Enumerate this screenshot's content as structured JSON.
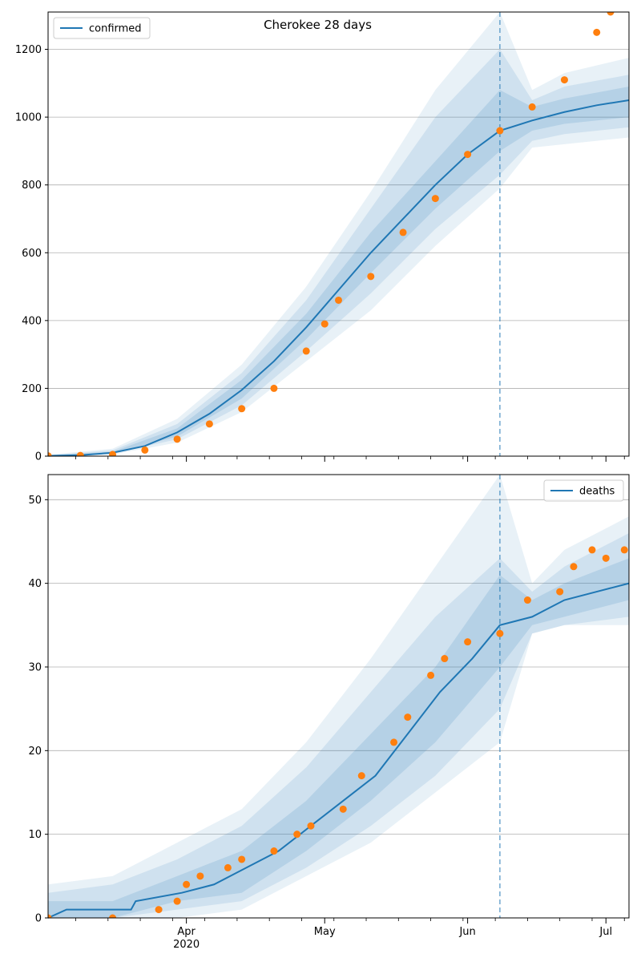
{
  "chart_data": [
    {
      "type": "line",
      "title": "Cherokee 28 days",
      "legend": {
        "placement": "top-left",
        "entries": [
          "confirmed"
        ]
      },
      "grid": {
        "y": true,
        "x": false
      },
      "ylim": [
        0,
        1310
      ],
      "yticks": [
        0,
        200,
        400,
        600,
        800,
        1000,
        1200
      ],
      "forecast_start": "2020-06-08",
      "model_line": {
        "name": "confirmed",
        "color": "#1f77b4",
        "points": [
          [
            "2020-03-02",
            1
          ],
          [
            "2020-03-09",
            3
          ],
          [
            "2020-03-16",
            10
          ],
          [
            "2020-03-23",
            30
          ],
          [
            "2020-03-30",
            70
          ],
          [
            "2020-04-06",
            125
          ],
          [
            "2020-04-13",
            195
          ],
          [
            "2020-04-20",
            280
          ],
          [
            "2020-04-27",
            380
          ],
          [
            "2020-05-04",
            490
          ],
          [
            "2020-05-11",
            600
          ],
          [
            "2020-05-18",
            700
          ],
          [
            "2020-05-25",
            800
          ],
          [
            "2020-06-01",
            890
          ],
          [
            "2020-06-08",
            960
          ],
          [
            "2020-06-15",
            990
          ],
          [
            "2020-06-22",
            1015
          ],
          [
            "2020-06-29",
            1035
          ],
          [
            "2020-07-06",
            1050
          ]
        ]
      },
      "uncertainty_bands": [
        {
          "opacity": 0.1,
          "points": [
            [
              "2020-03-02",
              0,
              4
            ],
            [
              "2020-03-16",
              5,
              22
            ],
            [
              "2020-03-30",
              40,
              110
            ],
            [
              "2020-04-13",
              130,
              270
            ],
            [
              "2020-04-27",
              280,
              500
            ],
            [
              "2020-05-11",
              430,
              780
            ],
            [
              "2020-05-25",
              620,
              1080
            ],
            [
              "2020-06-08",
              790,
              1310
            ],
            [
              "2020-06-15",
              910,
              1080
            ],
            [
              "2020-06-22",
              920,
              1130
            ],
            [
              "2020-07-06",
              940,
              1175
            ]
          ]
        },
        {
          "opacity": 0.12,
          "points": [
            [
              "2020-03-02",
              0,
              3
            ],
            [
              "2020-03-16",
              7,
              17
            ],
            [
              "2020-03-30",
              50,
              95
            ],
            [
              "2020-04-13",
              150,
              245
            ],
            [
              "2020-04-27",
              310,
              460
            ],
            [
              "2020-05-11",
              480,
              730
            ],
            [
              "2020-05-25",
              670,
              1000
            ],
            [
              "2020-06-08",
              830,
              1200
            ],
            [
              "2020-06-15",
              930,
              1050
            ],
            [
              "2020-06-22",
              950,
              1090
            ],
            [
              "2020-07-06",
              970,
              1125
            ]
          ]
        },
        {
          "opacity": 0.15,
          "points": [
            [
              "2020-03-02",
              0,
              2
            ],
            [
              "2020-03-16",
              8,
              13
            ],
            [
              "2020-03-30",
              58,
              82
            ],
            [
              "2020-04-13",
              170,
              225
            ],
            [
              "2020-04-27",
              345,
              420
            ],
            [
              "2020-05-11",
              540,
              660
            ],
            [
              "2020-05-25",
              730,
              870
            ],
            [
              "2020-06-08",
              900,
              1080
            ],
            [
              "2020-06-15",
              960,
              1030
            ],
            [
              "2020-06-22",
              980,
              1055
            ],
            [
              "2020-07-06",
              1000,
              1090
            ]
          ]
        }
      ],
      "observed": {
        "color": "#ff7f0e",
        "points": [
          [
            "2020-03-02",
            1
          ],
          [
            "2020-03-09",
            2
          ],
          [
            "2020-03-16",
            5
          ],
          [
            "2020-03-23",
            18
          ],
          [
            "2020-03-30",
            50
          ],
          [
            "2020-04-06",
            95
          ],
          [
            "2020-04-13",
            140
          ],
          [
            "2020-04-20",
            200
          ],
          [
            "2020-04-27",
            310
          ],
          [
            "2020-05-01",
            390
          ],
          [
            "2020-05-04",
            460
          ],
          [
            "2020-05-11",
            530
          ],
          [
            "2020-05-18",
            660
          ],
          [
            "2020-05-25",
            760
          ],
          [
            "2020-06-01",
            890
          ],
          [
            "2020-06-08",
            960
          ],
          [
            "2020-06-15",
            1030
          ],
          [
            "2020-06-22",
            1110
          ],
          [
            "2020-06-29",
            1250
          ],
          [
            "2020-07-02",
            1310
          ]
        ]
      },
      "x_ticks": [
        {
          "label": "Apr",
          "date": "2020-04-01"
        },
        {
          "label": "May",
          "date": "2020-05-01"
        },
        {
          "label": "Jun",
          "date": "2020-06-01"
        },
        {
          "label": "Jul",
          "date": "2020-07-01"
        }
      ],
      "x_year_label": "2020"
    },
    {
      "type": "line",
      "title": "",
      "legend": {
        "placement": "top-right",
        "entries": [
          "deaths"
        ]
      },
      "grid": {
        "y": true,
        "x": false
      },
      "ylim": [
        0,
        53
      ],
      "yticks": [
        0,
        10,
        20,
        30,
        40,
        50
      ],
      "forecast_start": "2020-06-08",
      "model_line": {
        "name": "deaths",
        "color": "#1f77b4",
        "points": [
          [
            "2020-03-02",
            0
          ],
          [
            "2020-03-06",
            1
          ],
          [
            "2020-03-20",
            1
          ],
          [
            "2020-03-21",
            2
          ],
          [
            "2020-03-31",
            3
          ],
          [
            "2020-04-07",
            4
          ],
          [
            "2020-04-14",
            6
          ],
          [
            "2020-04-21",
            8
          ],
          [
            "2020-04-28",
            11
          ],
          [
            "2020-05-05",
            14
          ],
          [
            "2020-05-12",
            17
          ],
          [
            "2020-05-19",
            22
          ],
          [
            "2020-05-26",
            27
          ],
          [
            "2020-06-02",
            31
          ],
          [
            "2020-06-08",
            35
          ],
          [
            "2020-06-15",
            36
          ],
          [
            "2020-06-22",
            38
          ],
          [
            "2020-06-29",
            39
          ],
          [
            "2020-07-06",
            40
          ]
        ]
      },
      "uncertainty_bands": [
        {
          "opacity": 0.1,
          "points": [
            [
              "2020-03-02",
              0,
              4
            ],
            [
              "2020-03-16",
              0,
              5
            ],
            [
              "2020-03-30",
              0,
              9
            ],
            [
              "2020-04-13",
              1,
              13
            ],
            [
              "2020-04-27",
              5,
              21
            ],
            [
              "2020-05-11",
              9,
              31
            ],
            [
              "2020-05-25",
              15,
              42
            ],
            [
              "2020-06-08",
              21,
              53
            ],
            [
              "2020-06-15",
              34,
              40
            ],
            [
              "2020-06-22",
              35,
              44
            ],
            [
              "2020-07-06",
              35,
              48
            ]
          ]
        },
        {
          "opacity": 0.12,
          "points": [
            [
              "2020-03-02",
              0,
              3
            ],
            [
              "2020-03-16",
              0,
              4
            ],
            [
              "2020-03-30",
              1,
              7
            ],
            [
              "2020-04-13",
              2,
              11
            ],
            [
              "2020-04-27",
              6,
              18
            ],
            [
              "2020-05-11",
              11,
              27
            ],
            [
              "2020-05-25",
              17,
              36
            ],
            [
              "2020-06-08",
              25,
              43
            ],
            [
              "2020-06-15",
              34,
              39
            ],
            [
              "2020-06-22",
              35,
              42
            ],
            [
              "2020-07-06",
              36,
              46
            ]
          ]
        },
        {
          "opacity": 0.15,
          "points": [
            [
              "2020-03-02",
              0,
              2
            ],
            [
              "2020-03-16",
              0,
              2
            ],
            [
              "2020-03-30",
              2,
              5
            ],
            [
              "2020-04-13",
              3,
              8
            ],
            [
              "2020-04-27",
              8,
              14
            ],
            [
              "2020-05-11",
              14,
              22
            ],
            [
              "2020-05-25",
              21,
              30
            ],
            [
              "2020-06-08",
              30,
              41
            ],
            [
              "2020-06-15",
              35,
              38
            ],
            [
              "2020-06-22",
              36,
              40
            ],
            [
              "2020-07-06",
              38,
              43
            ]
          ]
        }
      ],
      "observed": {
        "color": "#ff7f0e",
        "points": [
          [
            "2020-03-02",
            0
          ],
          [
            "2020-03-16",
            0
          ],
          [
            "2020-03-26",
            1
          ],
          [
            "2020-03-30",
            2
          ],
          [
            "2020-04-01",
            4
          ],
          [
            "2020-04-04",
            5
          ],
          [
            "2020-04-10",
            6
          ],
          [
            "2020-04-13",
            7
          ],
          [
            "2020-04-20",
            8
          ],
          [
            "2020-04-25",
            10
          ],
          [
            "2020-04-28",
            11
          ],
          [
            "2020-05-05",
            13
          ],
          [
            "2020-05-09",
            17
          ],
          [
            "2020-05-16",
            21
          ],
          [
            "2020-05-19",
            24
          ],
          [
            "2020-05-24",
            29
          ],
          [
            "2020-05-27",
            31
          ],
          [
            "2020-06-01",
            33
          ],
          [
            "2020-06-08",
            34
          ],
          [
            "2020-06-14",
            38
          ],
          [
            "2020-06-21",
            39
          ],
          [
            "2020-06-24",
            42
          ],
          [
            "2020-06-28",
            44
          ],
          [
            "2020-07-01",
            43
          ],
          [
            "2020-07-05",
            44
          ]
        ]
      },
      "x_ticks": [
        {
          "label": "Apr",
          "date": "2020-04-01"
        },
        {
          "label": "May",
          "date": "2020-05-01"
        },
        {
          "label": "Jun",
          "date": "2020-06-01"
        },
        {
          "label": "Jul",
          "date": "2020-07-01"
        }
      ],
      "x_year_label": "2020"
    }
  ]
}
